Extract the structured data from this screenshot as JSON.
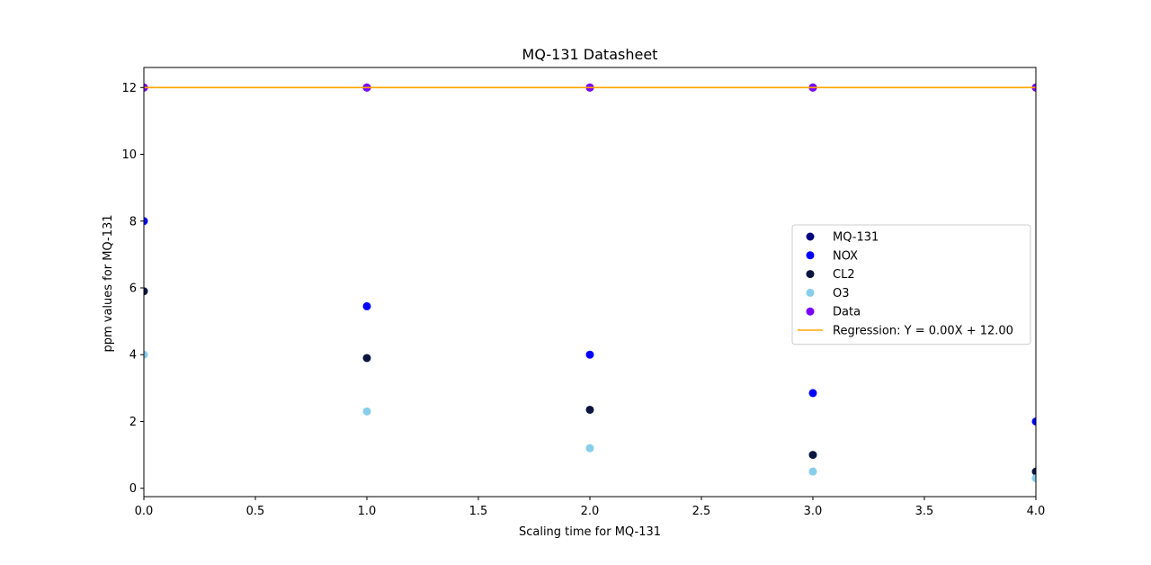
{
  "chart_data": {
    "type": "scatter",
    "title": "MQ-131 Datasheet",
    "xlabel": "Scaling time for MQ-131",
    "ylabel": "ppm values for MQ-131",
    "xlim": [
      0,
      4
    ],
    "ylim": [
      -0.25,
      12.6
    ],
    "x_ticks": [
      0.0,
      0.5,
      1.0,
      1.5,
      2.0,
      2.5,
      3.0,
      3.5,
      4.0
    ],
    "x_tick_labels": [
      "0.0",
      "0.5",
      "1.0",
      "1.5",
      "2.0",
      "2.5",
      "3.0",
      "3.5",
      "4.0"
    ],
    "y_ticks": [
      0,
      2,
      4,
      6,
      8,
      10,
      12
    ],
    "y_tick_labels": [
      "0",
      "2",
      "4",
      "6",
      "8",
      "10",
      "12"
    ],
    "grid": false,
    "legend_position": "center-right",
    "series": [
      {
        "name": "MQ-131",
        "kind": "scatter",
        "color": "#000080",
        "x": [
          0,
          1,
          2,
          3,
          4
        ],
        "y": [
          12,
          12,
          12,
          12,
          12
        ]
      },
      {
        "name": "NOX",
        "kind": "scatter",
        "color": "#0000ff",
        "x": [
          0,
          1,
          2,
          3,
          4
        ],
        "y": [
          8,
          5.45,
          4.0,
          2.85,
          2.0
        ]
      },
      {
        "name": "CL2",
        "kind": "scatter",
        "color": "#0a1640",
        "x": [
          0,
          1,
          2,
          3,
          4
        ],
        "y": [
          5.9,
          3.9,
          2.35,
          1.0,
          0.5
        ]
      },
      {
        "name": "O3",
        "kind": "scatter",
        "color": "#87ceeb",
        "x": [
          0,
          1,
          2,
          3,
          4
        ],
        "y": [
          4.0,
          2.3,
          1.2,
          0.5,
          0.3
        ]
      },
      {
        "name": "Data",
        "kind": "scatter",
        "color": "#7b00ff",
        "x": [
          0,
          1,
          2,
          3,
          4
        ],
        "y": [
          12,
          12,
          12,
          12,
          12
        ]
      },
      {
        "name": "Regression: Y = 0.00X + 12.00",
        "kind": "line",
        "color": "#ffa500",
        "x": [
          0,
          4
        ],
        "y": [
          12,
          12
        ]
      }
    ]
  }
}
